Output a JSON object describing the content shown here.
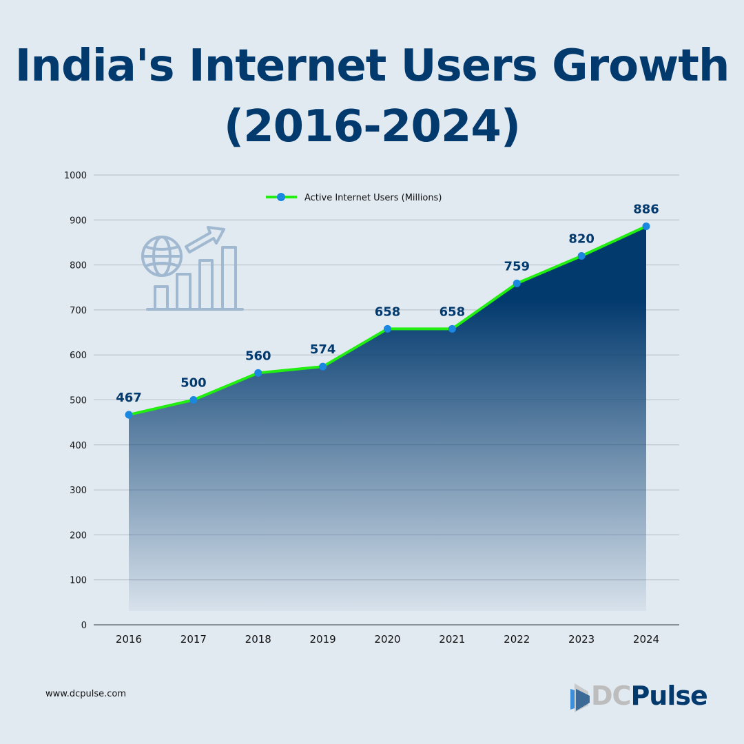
{
  "title": {
    "line1": "India's Internet Users Growth",
    "line2": "(2016-2024)"
  },
  "footer": {
    "url": "www.dcpulse.com",
    "logo_part1": "DC",
    "logo_part2": "Pulse"
  },
  "colors": {
    "title": "#033a6e",
    "line": "#22ee11",
    "marker": "#1a88e0",
    "area_top": "#033a6e",
    "label": "#033a6e",
    "grid": "#b4bcc6",
    "background": "#e1e9f1"
  },
  "chart_data": {
    "type": "area",
    "title": "India's Internet Users Growth (2016-2024)",
    "xlabel": "",
    "ylabel": "",
    "categories": [
      "2016",
      "2017",
      "2018",
      "2019",
      "2020",
      "2021",
      "2022",
      "2023",
      "2024"
    ],
    "series": [
      {
        "name": "Active Internet Users (Millions)",
        "values": [
          467,
          500,
          560,
          574,
          658,
          658,
          759,
          820,
          886
        ]
      }
    ],
    "data_labels": [
      "467",
      "500",
      "560",
      "574",
      "658",
      "658",
      "759",
      "820",
      "886"
    ],
    "ylim": [
      0,
      1000
    ],
    "yticks": [
      0,
      100,
      200,
      300,
      400,
      500,
      600,
      700,
      800,
      900,
      1000
    ],
    "grid": true,
    "legend": "top-center",
    "decoration": "globe-growth-icon"
  }
}
